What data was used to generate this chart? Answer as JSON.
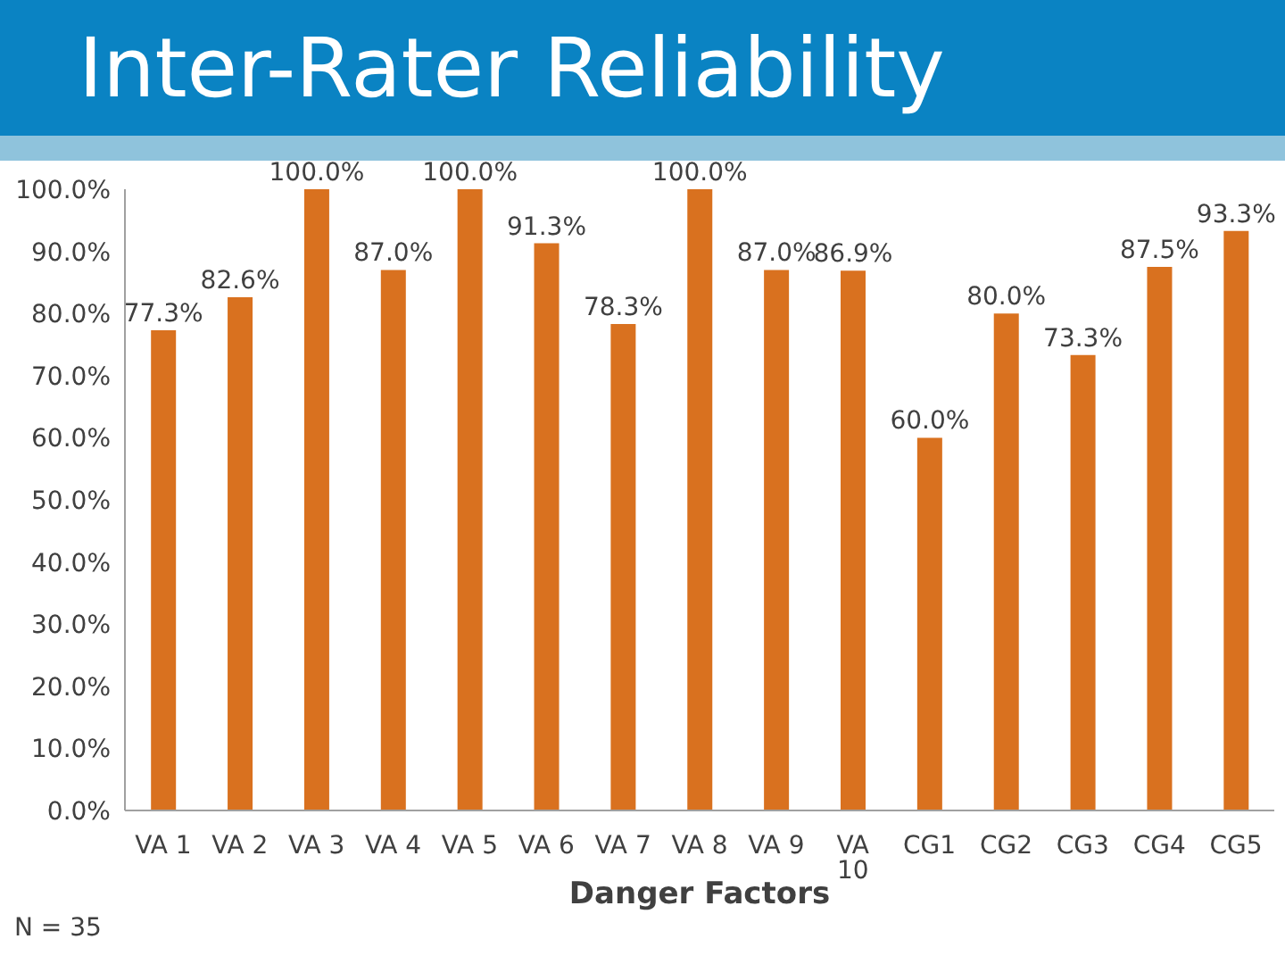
{
  "chart_data": {
    "type": "bar",
    "title": "Inter-Rater Reliability",
    "xlabel": "Danger Factors",
    "annotations": [
      "N = 35"
    ],
    "categories": [
      "VA 1",
      "VA 2",
      "VA 3",
      "VA 4",
      "VA 5",
      "VA 6",
      "VA 7",
      "VA 8",
      "VA 9",
      "VA 10",
      "CG1",
      "CG2",
      "CG3",
      "CG4",
      "CG5"
    ],
    "values": [
      77.3,
      82.6,
      100.0,
      87.0,
      100.0,
      91.3,
      78.3,
      100.0,
      87.0,
      86.9,
      60.0,
      80.0,
      73.3,
      87.5,
      93.3
    ],
    "value_labels": [
      "77.3%",
      "82.6%",
      "100.0%",
      "87.0%",
      "100.0%",
      "91.3%",
      "78.3%",
      "100.0%",
      "87.0%",
      "86.9%",
      "60.0%",
      "80.0%",
      "73.3%",
      "87.5%",
      "93.3%"
    ],
    "color": "#d9711f",
    "ylim": [
      0,
      100
    ],
    "yticks": [
      {
        "value": 0,
        "label": "0.0%"
      },
      {
        "value": 10,
        "label": "10.0%"
      },
      {
        "value": 20,
        "label": "20.0%"
      },
      {
        "value": 30,
        "label": "30.0%"
      },
      {
        "value": 40,
        "label": "40.0%"
      },
      {
        "value": 50,
        "label": "50.0%"
      },
      {
        "value": 60,
        "label": "60.0%"
      },
      {
        "value": 70,
        "label": "70.0%"
      },
      {
        "value": 80,
        "label": "80.0%"
      },
      {
        "value": 90,
        "label": "90.0%"
      },
      {
        "value": 100,
        "label": "100.0%"
      }
    ],
    "grid": false,
    "legend": false
  }
}
